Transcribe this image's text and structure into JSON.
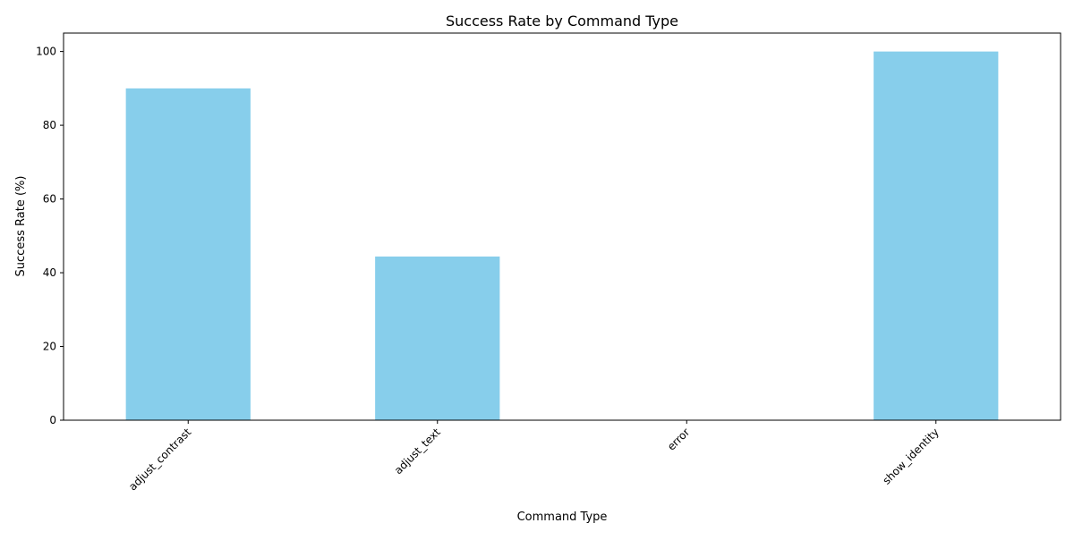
{
  "chart_data": {
    "type": "bar",
    "title": "Success Rate by Command Type",
    "xlabel": "Command Type",
    "ylabel": "Success Rate (%)",
    "categories": [
      "adjust_contrast",
      "adjust_text",
      "error",
      "show_identity"
    ],
    "values": [
      90,
      44.4,
      0,
      100
    ],
    "ylim": [
      0,
      105
    ],
    "yticks": [
      0,
      20,
      40,
      60,
      80,
      100
    ],
    "grid": false,
    "legend": "none",
    "bar_color": "#87ceeb",
    "axis_color": "#000000"
  }
}
